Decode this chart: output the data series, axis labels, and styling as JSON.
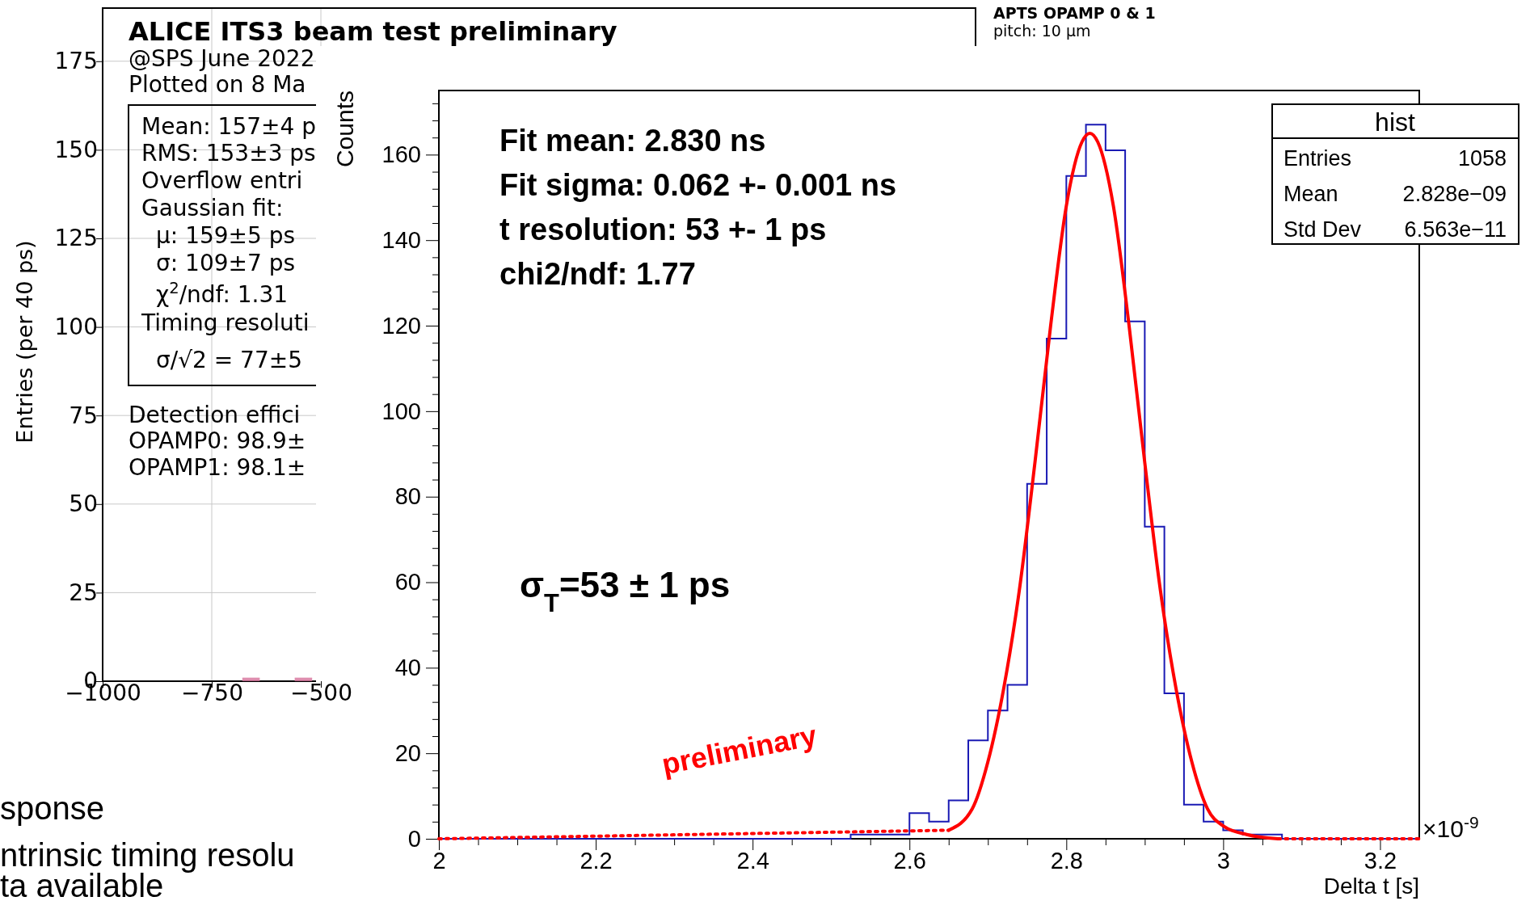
{
  "chart_data": [
    {
      "type": "histogram",
      "title": "ALICE ITS3 beam test preliminary",
      "subtitle": "@SPS June 2022",
      "ylabel": "Entries (per 40 ps)",
      "color": "#d6709a",
      "bins": [
        -1000,
        -960,
        -920,
        -880,
        -840,
        -800,
        -760,
        -720,
        -680,
        -640,
        -600,
        -560,
        -520
      ],
      "values": [
        0,
        0,
        0,
        0,
        0,
        0,
        0,
        0,
        1,
        0,
        0,
        1
      ],
      "xlim": [
        -1000,
        1000
      ],
      "ylim": [
        0,
        190
      ],
      "xticks": [
        {
          "value": -1000,
          "label": "−1000"
        },
        {
          "value": -750,
          "label": "−750"
        },
        {
          "value": -500,
          "label": "−500"
        }
      ],
      "yticks": [
        0,
        25,
        50,
        75,
        100,
        125,
        150,
        175
      ],
      "grid": true,
      "annotations": [
        "Plotted on 8 Ma",
        "Mean: 157±4 p",
        "RMS: 153±3 ps",
        "Overflow entri",
        "Gaussian fit:",
        "μ: 159±5 ps",
        "σ: 109±7 ps",
        "χ$^{2}$/ndf: 1.31",
        "Timing resoluti",
        "σ/√2 = 77±5",
        "Detection effici",
        "OPAMP0: 98.9±",
        "OPAMP1: 98.1±",
        "APTS OPAMP 0 & 1",
        "pitch: 10 µm",
        "sponse",
        "ntrinsic timing resolu",
        "ta available"
      ]
    },
    {
      "type": "histogram",
      "ylabel": "Counts",
      "xlabel": "Delta t [s]",
      "color": "#1a1ab4",
      "bins": [
        2,
        2.025,
        2.05,
        2.075,
        2.1,
        2.125,
        2.15,
        2.175,
        2.2,
        2.225,
        2.25,
        2.275,
        2.3,
        2.325,
        2.35,
        2.375,
        2.4,
        2.425,
        2.45,
        2.475,
        2.5,
        2.525,
        2.55,
        2.575,
        2.6,
        2.625,
        2.65,
        2.675,
        2.7,
        2.725,
        2.75,
        2.775,
        2.8,
        2.825,
        2.85,
        2.875,
        2.9,
        2.925,
        2.95,
        2.975,
        3,
        3.025,
        3.05,
        3.075,
        3.1,
        3.125,
        3.15,
        3.175,
        3.2,
        3.225,
        3.25
      ],
      "values": [
        0,
        0,
        0,
        0,
        0,
        0,
        0,
        0,
        0,
        0,
        0,
        0,
        0,
        0,
        0,
        0,
        0,
        0,
        0,
        0,
        0,
        1,
        1,
        1,
        6,
        4,
        9,
        23,
        30,
        36,
        83,
        117,
        155,
        167,
        161,
        121,
        73,
        34,
        8,
        4,
        2,
        1,
        1,
        0,
        0,
        0,
        0,
        0,
        0,
        0
      ],
      "xlim": [
        2,
        3.25
      ],
      "ylim": [
        0,
        175
      ],
      "xticks": [
        2,
        {
          "value": 2.05,
          "label": null
        },
        {
          "value": 2.1,
          "label": null
        },
        {
          "value": 2.15,
          "label": null
        },
        2.2,
        {
          "value": 2.25,
          "label": null
        },
        {
          "value": 2.3,
          "label": null
        },
        {
          "value": 2.35,
          "label": null
        },
        2.4,
        {
          "value": 2.45,
          "label": null
        },
        {
          "value": 2.5,
          "label": null
        },
        {
          "value": 2.55,
          "label": null
        },
        2.6,
        {
          "value": 2.65,
          "label": null
        },
        {
          "value": 2.7,
          "label": null
        },
        {
          "value": 2.75,
          "label": null
        },
        2.8,
        {
          "value": 2.85,
          "label": null
        },
        {
          "value": 2.9,
          "label": null
        },
        {
          "value": 2.95,
          "label": null
        },
        3,
        {
          "value": 3.05,
          "label": null
        },
        {
          "value": 3.1,
          "label": null
        },
        {
          "value": 3.15,
          "label": null
        },
        3.2
      ],
      "yticks": [
        0,
        {
          "value": 4,
          "label": null
        },
        {
          "value": 8,
          "label": null
        },
        {
          "value": 12,
          "label": null
        },
        {
          "value": 16,
          "label": null
        },
        20,
        {
          "value": 24,
          "label": null
        },
        {
          "value": 28,
          "label": null
        },
        {
          "value": 32,
          "label": null
        },
        {
          "value": 36,
          "label": null
        },
        40,
        {
          "value": 44,
          "label": null
        },
        {
          "value": 48,
          "label": null
        },
        {
          "value": 52,
          "label": null
        },
        {
          "value": 56,
          "label": null
        },
        60,
        {
          "value": 64,
          "label": null
        },
        {
          "value": 68,
          "label": null
        },
        {
          "value": 72,
          "label": null
        },
        {
          "value": 76,
          "label": null
        },
        80,
        {
          "value": 84,
          "label": null
        },
        {
          "value": 88,
          "label": null
        },
        {
          "value": 92,
          "label": null
        },
        {
          "value": 96,
          "label": null
        },
        100,
        {
          "value": 104,
          "label": null
        },
        {
          "value": 108,
          "label": null
        },
        {
          "value": 112,
          "label": null
        },
        {
          "value": 116,
          "label": null
        },
        120,
        {
          "value": 124,
          "label": null
        },
        {
          "value": 128,
          "label": null
        },
        {
          "value": 132,
          "label": null
        },
        {
          "value": 136,
          "label": null
        },
        140,
        {
          "value": 144,
          "label": null
        },
        {
          "value": 148,
          "label": null
        },
        {
          "value": 152,
          "label": null
        },
        {
          "value": 156,
          "label": null
        },
        160,
        {
          "value": 164,
          "label": null
        },
        {
          "value": 168,
          "label": null
        },
        {
          "value": 172,
          "label": null
        }
      ],
      "series": [
        {
          "type": "line",
          "color": "#ff0000",
          "line_style": "solid",
          "x": [
            2.65,
            2.68,
            2.7,
            2.72,
            2.74,
            2.76,
            2.78,
            2.8,
            2.82,
            2.83,
            2.84,
            2.86,
            2.88,
            2.9,
            2.92,
            2.94,
            2.96,
            2.98,
            3,
            3.03,
            3.07
          ],
          "values": [
            2,
            7,
            18,
            35,
            58,
            88,
            120,
            148,
            163,
            165,
            163,
            148,
            120,
            88,
            58,
            35,
            18,
            7,
            3,
            1,
            0
          ]
        },
        {
          "type": "line",
          "color": "#ff0000",
          "line_style": "dotted",
          "x": [
            2,
            2.65
          ],
          "values": [
            0,
            2
          ]
        },
        {
          "type": "line",
          "color": "#ff0000",
          "line_style": "dotted",
          "x": [
            3.07,
            3.25
          ],
          "values": [
            0,
            0
          ]
        }
      ],
      "annotations": [
        "Fit mean: 2.830 ns",
        "Fit sigma: 0.062 +- 0.001 ns",
        "t resolution: 53 +- 1 ps",
        "chi2/ndf: 1.77",
        "σ$_{T}$=53 ± 1 ps",
        "preliminary",
        "×10$^{-9}$",
        "hist",
        "Entries 1058",
        "Mean 2.828e−09",
        "Std Dev 6.563e−11"
      ]
    }
  ]
}
